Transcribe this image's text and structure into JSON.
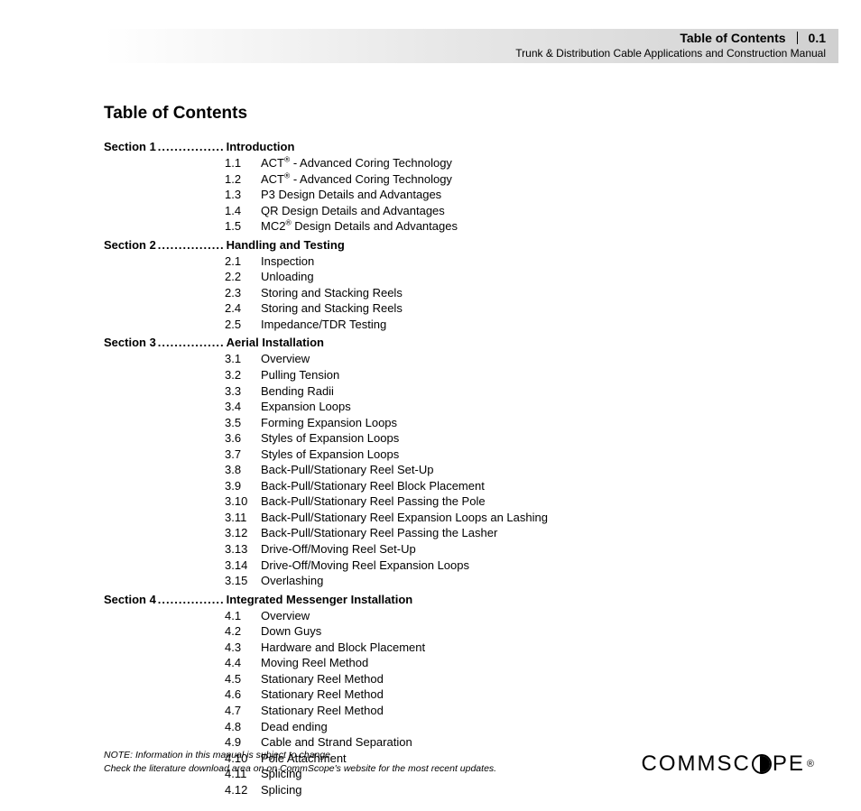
{
  "header": {
    "title": "Table of Contents",
    "pagenum": "0.1",
    "subtitle": "Trunk & Distribution Cable Applications and Construction Manual"
  },
  "page_title": "Table of Contents",
  "dots": "................",
  "sections": [
    {
      "label": "Section 1",
      "name": "Introduction",
      "items": [
        {
          "num": "1.1",
          "title": "ACT<sup>®</sup> - Advanced Coring Technology"
        },
        {
          "num": "1.2",
          "title": "ACT<sup>®</sup> - Advanced Coring Technology"
        },
        {
          "num": "1.3",
          "title": "P3 Design Details and Advantages"
        },
        {
          "num": "1.4",
          "title": "QR Design Details and Advantages"
        },
        {
          "num": "1.5",
          "title": "MC2<sup>®</sup> Design Details and Advantages"
        }
      ]
    },
    {
      "label": "Section 2",
      "name": "Handling and Testing",
      "items": [
        {
          "num": "2.1",
          "title": "Inspection"
        },
        {
          "num": "2.2",
          "title": "Unloading"
        },
        {
          "num": "2.3",
          "title": "Storing and Stacking Reels"
        },
        {
          "num": "2.4",
          "title": "Storing and Stacking Reels"
        },
        {
          "num": "2.5",
          "title": "Impedance/TDR Testing"
        }
      ]
    },
    {
      "label": "Section 3",
      "name": "Aerial Installation",
      "items": [
        {
          "num": "3.1",
          "title": "Overview"
        },
        {
          "num": "3.2",
          "title": "Pulling Tension"
        },
        {
          "num": "3.3",
          "title": "Bending Radii"
        },
        {
          "num": "3.4",
          "title": "Expansion Loops"
        },
        {
          "num": "3.5",
          "title": "Forming Expansion Loops"
        },
        {
          "num": "3.6",
          "title": "Styles of Expansion Loops"
        },
        {
          "num": "3.7",
          "title": "Styles of Expansion Loops"
        },
        {
          "num": "3.8",
          "title": "Back-Pull/Stationary Reel Set-Up"
        },
        {
          "num": "3.9",
          "title": "Back-Pull/Stationary Reel Block Placement"
        },
        {
          "num": "3.10",
          "title": "Back-Pull/Stationary Reel Passing the Pole"
        },
        {
          "num": "3.11",
          "title": "Back-Pull/Stationary Reel Expansion Loops an Lashing"
        },
        {
          "num": "3.12",
          "title": "Back-Pull/Stationary Reel Passing the Lasher"
        },
        {
          "num": "3.13",
          "title": "Drive-Off/Moving Reel Set-Up"
        },
        {
          "num": "3.14",
          "title": "Drive-Off/Moving Reel Expansion Loops"
        },
        {
          "num": "3.15",
          "title": "Overlashing"
        }
      ]
    },
    {
      "label": "Section 4",
      "name": "Integrated Messenger Installation",
      "items": [
        {
          "num": "4.1",
          "title": "Overview"
        },
        {
          "num": "4.2",
          "title": "Down Guys"
        },
        {
          "num": "4.3",
          "title": "Hardware and Block Placement"
        },
        {
          "num": "4.4",
          "title": "Moving Reel Method"
        },
        {
          "num": "4.5",
          "title": "Stationary Reel Method"
        },
        {
          "num": "4.6",
          "title": "Stationary Reel Method"
        },
        {
          "num": "4.7",
          "title": "Stationary Reel Method"
        },
        {
          "num": "4.8",
          "title": "Dead ending"
        },
        {
          "num": "4.9",
          "title": "Cable and Strand Separation"
        },
        {
          "num": "4.10",
          "title": "Pole Attachment"
        },
        {
          "num": "4.11",
          "title": "Splicing"
        },
        {
          "num": "4.12",
          "title": "Splicing"
        }
      ]
    }
  ],
  "footnote": {
    "line1": "NOTE: Information in this manual is subject to change.",
    "line2": "Check the literature download area on on CommScope's website for the most recent updates."
  },
  "logo": {
    "part1": "COMMSC",
    "part2": "PE",
    "reg": "®"
  }
}
